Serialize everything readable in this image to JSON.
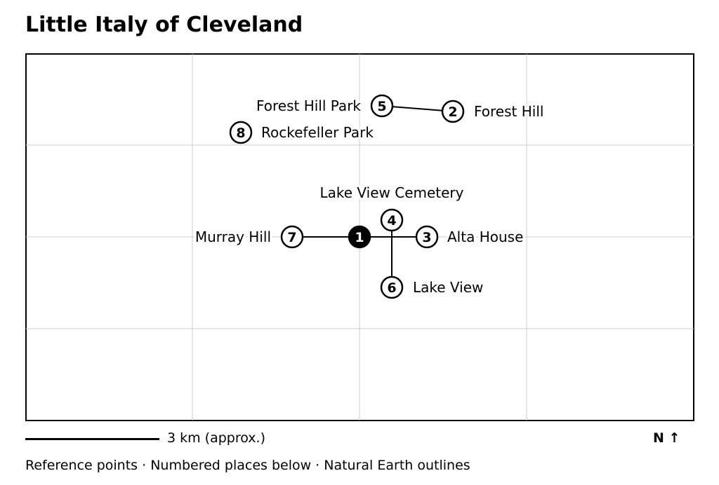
{
  "title": "Little Italy of Cleveland",
  "places": [
    {
      "num": "1",
      "name": "",
      "center": true
    },
    {
      "num": "2",
      "name": "Forest Hill"
    },
    {
      "num": "3",
      "name": "Alta House"
    },
    {
      "num": "4",
      "name": "Lake View Cemetery"
    },
    {
      "num": "5",
      "name": "Forest Hill Park"
    },
    {
      "num": "6",
      "name": "Lake View"
    },
    {
      "num": "7",
      "name": "Murray Hill"
    },
    {
      "num": "8",
      "name": "Rockefeller Park"
    }
  ],
  "connections": [
    [
      "5",
      "2"
    ],
    [
      "7",
      "1"
    ],
    [
      "1",
      "3"
    ],
    [
      "4",
      "6"
    ]
  ],
  "grid": true,
  "scale": {
    "label": "3 km (approx.)"
  },
  "north": {
    "label": "N ↑"
  },
  "footer": "Reference points · Numbered places below · Natural Earth outlines",
  "colors": {
    "marker_fill": "#ffffff",
    "center_fill": "#000000",
    "grid": "#cccccc",
    "line": "#000000"
  }
}
